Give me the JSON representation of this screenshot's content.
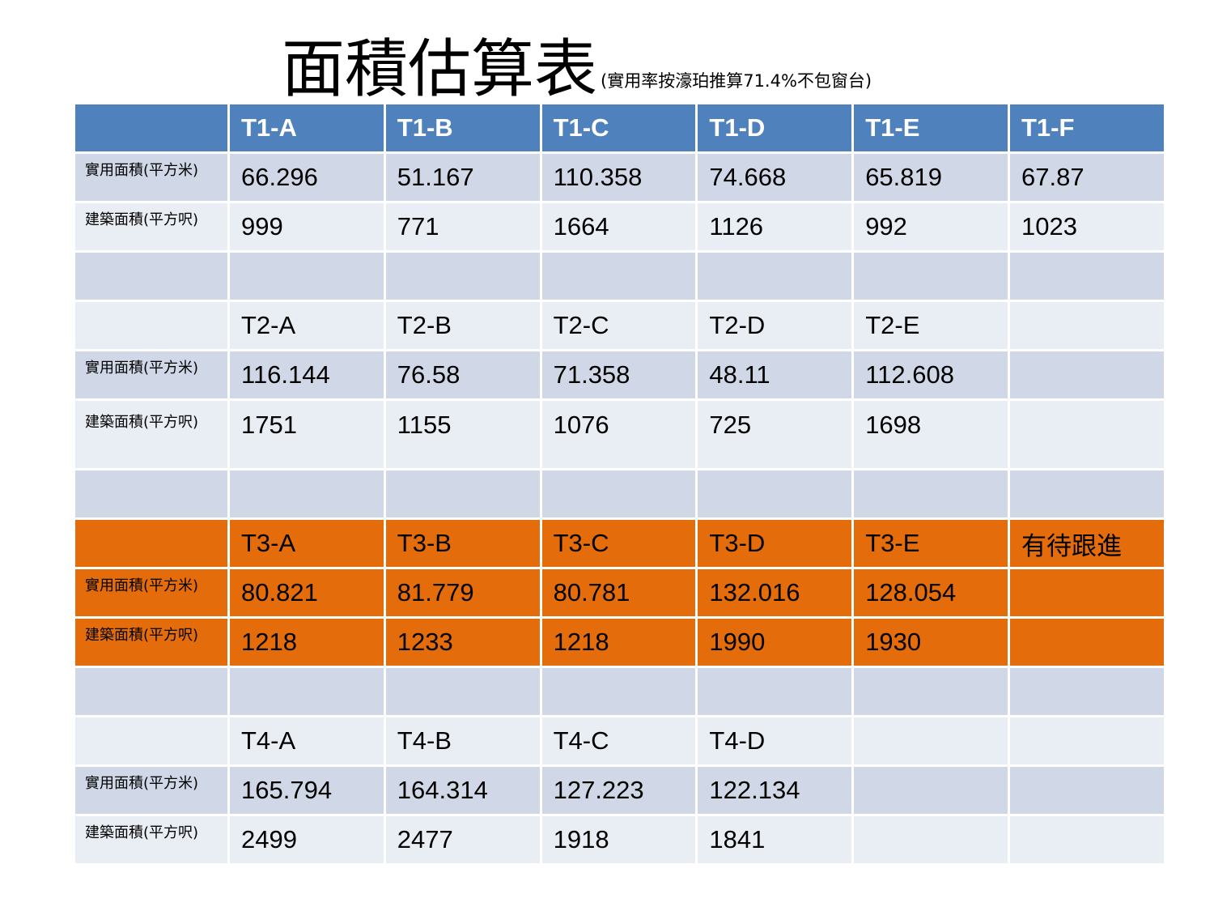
{
  "title": "面積估算表",
  "subtitle": "(實用率按濠珀推算71.4%不包窗台)",
  "labels": {
    "usable": "實用面積(平方米)",
    "gross": "建築面積(平方呎)"
  },
  "t1": {
    "units": [
      "T1-A",
      "T1-B",
      "T1-C",
      "T1-D",
      "T1-E",
      "T1-F"
    ],
    "usable": [
      "66.296",
      "51.167",
      "110.358",
      "74.668",
      "65.819",
      "67.87"
    ],
    "gross": [
      "999",
      "771",
      "1664",
      "1126",
      "992",
      "1023"
    ]
  },
  "t2": {
    "units": [
      "T2-A",
      "T2-B",
      "T2-C",
      "T2-D",
      "T2-E",
      ""
    ],
    "usable": [
      "116.144",
      "76.58",
      "71.358",
      "48.11",
      "112.608",
      ""
    ],
    "gross": [
      "1751",
      "1155",
      "1076",
      "725",
      "1698",
      ""
    ]
  },
  "t3": {
    "units": [
      "T3-A",
      "T3-B",
      "T3-C",
      "T3-D",
      "T3-E",
      "有待跟進"
    ],
    "usable": [
      "80.821",
      "81.779",
      "80.781",
      "132.016",
      "128.054",
      ""
    ],
    "gross": [
      "1218",
      "1233",
      "1218",
      "1990",
      "1930",
      ""
    ]
  },
  "t4": {
    "units": [
      "T4-A",
      "T4-B",
      "T4-C",
      "T4-D",
      "",
      ""
    ],
    "usable": [
      "165.794",
      "164.314",
      "127.223",
      "122.134",
      "",
      ""
    ],
    "gross": [
      "2499",
      "2477",
      "1918",
      "1841",
      "",
      ""
    ]
  },
  "colors": {
    "header_blue": "#4f81bd",
    "row_dark": "#d0d8e8",
    "row_light": "#e9edf4",
    "highlight_orange": "#e46c0a"
  }
}
